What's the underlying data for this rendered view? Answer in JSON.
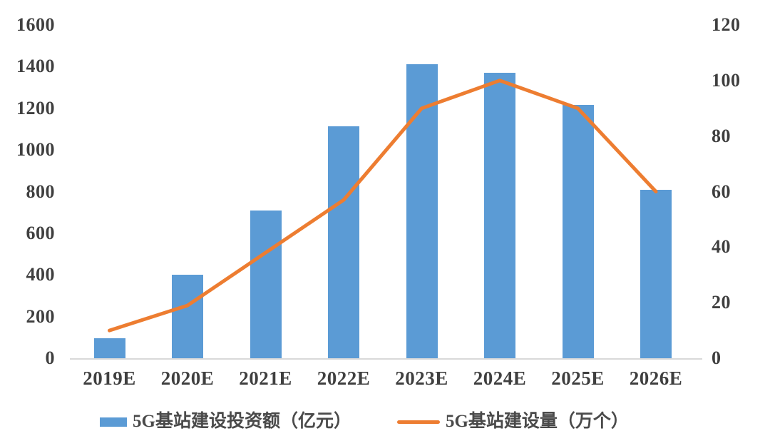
{
  "chart_data": {
    "type": "combo",
    "title": "",
    "categories": [
      "2019E",
      "2020E",
      "2021E",
      "2022E",
      "2023E",
      "2024E",
      "2025E",
      "2026E"
    ],
    "series": [
      {
        "name": "5G基站建设投资额（亿元）",
        "type": "bar",
        "axis": "left",
        "color": "#5b9bd5",
        "values": [
          95,
          400,
          710,
          1115,
          1410,
          1370,
          1215,
          810
        ]
      },
      {
        "name": "5G基站建设量（万个）",
        "type": "line",
        "axis": "right",
        "color": "#ed7d31",
        "values": [
          10,
          19,
          38,
          57,
          90,
          100,
          90,
          60
        ]
      }
    ],
    "left_axis": {
      "min": 0,
      "max": 1600,
      "step": 200,
      "tick_labels": [
        "0",
        "200",
        "400",
        "600",
        "800",
        "1000",
        "1200",
        "1400",
        "1600"
      ]
    },
    "right_axis": {
      "min": 0,
      "max": 120,
      "step": 20,
      "tick_labels": [
        "0",
        "20",
        "40",
        "60",
        "80",
        "100",
        "120"
      ]
    },
    "grid": false,
    "legend_position": "bottom"
  },
  "colors": {
    "bar": "#5b9bd5",
    "line": "#ed7d31",
    "axis_text": "#3f3f3f",
    "baseline": "#d9d9d9",
    "background": "#ffffff"
  }
}
